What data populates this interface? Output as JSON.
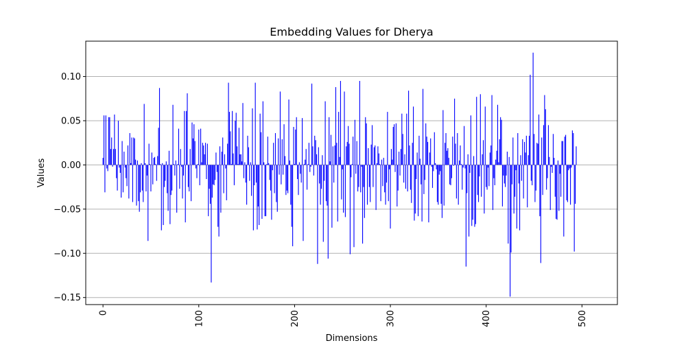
{
  "chart_data": {
    "type": "bar",
    "title": "Embedding Values for Dherya",
    "xlabel": "Dimensions",
    "ylabel": "Values",
    "xlim": [
      -18,
      537
    ],
    "ylim": [
      -0.158,
      0.14
    ],
    "xticks": [
      0,
      100,
      200,
      300,
      400,
      500
    ],
    "xtick_labels": [
      "0",
      "100",
      "200",
      "300",
      "400",
      "500"
    ],
    "xtick_rotation": 90,
    "yticks": [
      -0.15,
      -0.1,
      -0.05,
      0.0,
      0.05,
      0.1
    ],
    "ytick_labels": [
      "−0.15",
      "−0.10",
      "−0.05",
      "0.00",
      "0.05",
      "0.10"
    ],
    "grid": "y",
    "bar_color": "#0000ff",
    "series": [
      {
        "x_start": 0,
        "values": [
          0.008,
          0.056,
          -0.031,
          0.056,
          -0.004,
          -0.007,
          0.054,
          0.054,
          0.018,
          0.031,
          -0.002,
          0.018,
          0.057,
          0.018,
          -0.015,
          -0.029,
          0.05,
          -0.003,
          -0.009,
          -0.037,
          0.027,
          -0.031,
          0.015,
          -0.003,
          -0.015,
          -0.024,
          0.022,
          -0.038,
          0.036,
          0.002,
          0.031,
          -0.042,
          0.031,
          0.03,
          0.006,
          -0.046,
          0.005,
          -0.041,
          -0.053,
          -0.031,
          0.002,
          -0.029,
          -0.042,
          0.069,
          0.002,
          -0.03,
          -0.012,
          -0.086,
          0.024,
          0.001,
          -0.03,
          0.014,
          -0.022,
          0.008,
          0.009,
          0.001,
          -0.018,
          0.01,
          0.042,
          0.087,
          0.001,
          -0.074,
          0.002,
          -0.068,
          -0.025,
          -0.018,
          0.004,
          -0.032,
          -0.052,
          0.016,
          -0.067,
          -0.034,
          -0.029,
          0.068,
          0.001,
          -0.012,
          0.005,
          -0.054,
          0.001,
          0.041,
          -0.027,
          0.018,
          -0.002,
          -0.038,
          -0.012,
          0.061,
          -0.065,
          0.061,
          0.081,
          -0.025,
          -0.03,
          0.018,
          -0.041,
          0.048,
          0.03,
          0.046,
          0.027,
          -0.004,
          -0.015,
          0.001,
          0.04,
          -0.023,
          0.041,
          0.003,
          0.025,
          0.022,
          0.012,
          0.025,
          -0.016,
          0.024,
          -0.058,
          -0.027,
          -0.044,
          -0.133,
          -0.037,
          -0.022,
          -0.023,
          -0.017,
          0.014,
          -0.008,
          -0.07,
          -0.081,
          0.021,
          -0.054,
          0.015,
          0.031,
          -0.032,
          0.012,
          -0.004,
          -0.04,
          0.024,
          0.093,
          0.06,
          0.038,
          0.001,
          0.061,
          0.013,
          -0.023,
          0.05,
          0.059,
          0.021,
          0.001,
          0.042,
          0.012,
          0.012,
          0.004,
          0.07,
          -0.015,
          0.003,
          -0.02,
          -0.045,
          0.033,
          0.02,
          -0.018,
          0.003,
          -0.035,
          0.064,
          -0.074,
          -0.023,
          0.093,
          -0.02,
          -0.073,
          -0.047,
          -0.068,
          0.058,
          0.037,
          -0.061,
          0.072,
          0.003,
          -0.058,
          -0.058,
          0.001,
          0.032,
          0.002,
          -0.017,
          -0.029,
          -0.062,
          -0.006,
          0.025,
          -0.032,
          0.036,
          -0.042,
          -0.053,
          0.03,
          -0.011,
          0.083,
          -0.022,
          0.029,
          -0.011,
          0.046,
          0.01,
          -0.034,
          -0.029,
          -0.032,
          0.074,
          0.005,
          -0.045,
          -0.07,
          -0.092,
          0.043,
          0.001,
          0.04,
          0.054,
          -0.016,
          -0.034,
          0.003,
          -0.01,
          -0.02,
          0.053,
          -0.086,
          0.001,
          0.006,
          0.018,
          -0.028,
          0.001,
          0.025,
          -0.008,
          -0.002,
          0.092,
          0.021,
          -0.012,
          0.033,
          0.028,
          0.012,
          -0.112,
          0.02,
          -0.021,
          -0.045,
          -0.027,
          0.011,
          -0.087,
          -0.018,
          0.072,
          -0.041,
          -0.046,
          -0.106,
          0.054,
          0.004,
          0.034,
          -0.071,
          0.021,
          -0.02,
          0.022,
          0.088,
          0.025,
          -0.064,
          0.06,
          0.009,
          0.095,
          -0.039,
          -0.005,
          -0.054,
          0.083,
          -0.059,
          0.021,
          0.026,
          0.044,
          0.024,
          -0.101,
          -0.014,
          0.001,
          0.032,
          -0.093,
          0.051,
          -0.01,
          0.027,
          -0.03,
          -0.025,
          0.095,
          -0.031,
          -0.002,
          -0.089,
          -0.025,
          -0.06,
          0.054,
          0.047,
          -0.045,
          0.019,
          -0.025,
          -0.042,
          0.023,
          0.045,
          -0.025,
          0.02,
          0.022,
          -0.051,
          0.002,
          0.021,
          0.013,
          0.001,
          -0.041,
          0.006,
          -0.024,
          0.008,
          -0.031,
          -0.045,
          -0.02,
          0.06,
          -0.041,
          -0.005,
          -0.072,
          0.018,
          0.006,
          0.043,
          0.046,
          -0.008,
          0.047,
          -0.047,
          -0.029,
          0.015,
          -0.012,
          0.018,
          0.058,
          0.035,
          -0.02,
          0.012,
          -0.027,
          0.058,
          -0.03,
          0.084,
          0.022,
          -0.028,
          -0.043,
          0.025,
          0.066,
          -0.063,
          -0.055,
          -0.016,
          0.014,
          -0.058,
          0.033,
          0.007,
          -0.022,
          -0.064,
          0.086,
          -0.033,
          -0.017,
          0.047,
          0.032,
          0.026,
          -0.065,
          0.014,
          0.03,
          -0.002,
          -0.026,
          -0.007,
          0.037,
          0.002,
          -0.005,
          -0.042,
          -0.045,
          -0.011,
          -0.007,
          -0.044,
          -0.06,
          0.062,
          -0.046,
          0.025,
          0.036,
          0.016,
          0.019,
          0.008,
          -0.022,
          -0.023,
          -0.015,
          0.032,
          -0.001,
          0.075,
          0.024,
          -0.038,
          0.036,
          -0.045,
          0.005,
          0.022,
          0.001,
          -0.028,
          -0.003,
          0.044,
          -0.004,
          -0.115,
          -0.032,
          0.012,
          -0.081,
          -0.009,
          0.056,
          -0.069,
          -0.062,
          0.01,
          -0.07,
          -0.067,
          0.077,
          -0.034,
          -0.042,
          -0.013,
          0.08,
          -0.036,
          0.012,
          0.028,
          -0.055,
          0.066,
          -0.025,
          -0.028,
          -0.003,
          -0.024,
          0.014,
          0.022,
          0.079,
          -0.051,
          -0.015,
          -0.023,
          0.006,
          0.016,
          0.068,
          0.003,
          0.029,
          0.054,
          0.051,
          -0.047,
          -0.012,
          -0.021,
          -0.025,
          -0.012,
          0.015,
          -0.089,
          0.009,
          -0.149,
          -0.099,
          -0.022,
          0.031,
          -0.055,
          -0.036,
          -0.006,
          -0.072,
          0.036,
          -0.021,
          -0.074,
          0.011,
          -0.018,
          0.029,
          -0.038,
          0.026,
          0.014,
          0.033,
          -0.048,
          0.011,
          0.033,
          0.102,
          -0.018,
          -0.023,
          0.127,
          0.035,
          -0.042,
          -0.029,
          0.025,
          0.024,
          0.057,
          -0.058,
          -0.111,
          0.031,
          -0.034,
          0.045,
          0.079,
          0.063,
          -0.028,
          -0.015,
          0.045,
          0.009,
          -0.051,
          -0.002,
          -0.009,
          0.035,
          0.008,
          -0.036,
          -0.061,
          -0.062,
          0.005,
          -0.052,
          -0.01,
          -0.036,
          0.027,
          0.027,
          -0.081,
          0.032,
          0.034,
          -0.04,
          -0.042,
          -0.006,
          -0.004,
          -0.045,
          -0.003,
          0.039,
          0.036,
          -0.098,
          -0.044,
          0.021
        ]
      }
    ]
  }
}
